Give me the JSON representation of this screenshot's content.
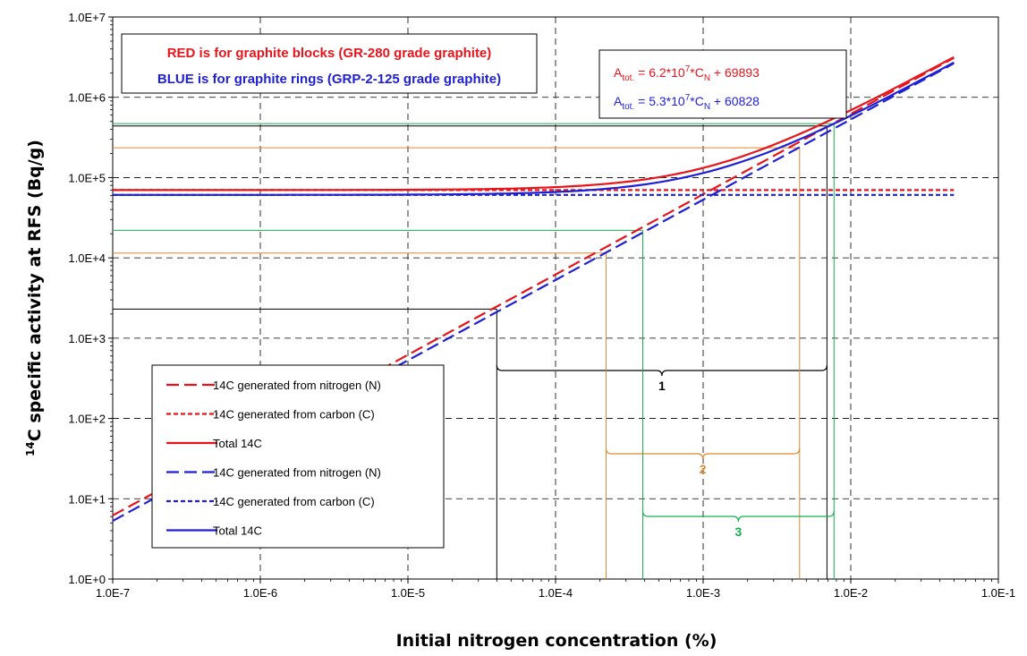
{
  "chart_data": {
    "type": "line",
    "xlabel": "Initial nitrogen concentration (%)",
    "ylabel_sup": "14",
    "ylabel_rest": "C specific activity at RFS (Bq/g)",
    "x_scale": "log",
    "y_scale": "log",
    "xlim": [
      1e-07,
      0.1
    ],
    "ylim": [
      1,
      10000000
    ],
    "grid": true,
    "x_ticks": [
      {
        "value": 1e-07,
        "label": "1.0E-7"
      },
      {
        "value": 1e-06,
        "label": "1.0E-6"
      },
      {
        "value": 1e-05,
        "label": "1.0E-5"
      },
      {
        "value": 0.0001,
        "label": "1.0E-4"
      },
      {
        "value": 0.001,
        "label": "1.0E-3"
      },
      {
        "value": 0.01,
        "label": "1.0E-2"
      },
      {
        "value": 0.1,
        "label": "1.0E-1"
      }
    ],
    "y_ticks": [
      {
        "value": 1,
        "label": "1.0E+0"
      },
      {
        "value": 10,
        "label": "1.0E+1"
      },
      {
        "value": 100,
        "label": "1.0E+2"
      },
      {
        "value": 1000,
        "label": "1.0E+3"
      },
      {
        "value": 10000,
        "label": "1.0E+4"
      },
      {
        "value": 100000,
        "label": "1.0E+5"
      },
      {
        "value": 1000000,
        "label": "1.0E+6"
      },
      {
        "value": 10000000,
        "label": "1.0E+7"
      }
    ],
    "series": [
      {
        "name": "14C generated from nitrogen (N)",
        "color": "#e8141c",
        "style": "long-dash",
        "slope": 62000000,
        "intercept": 0
      },
      {
        "name": "14C generated from carbon (C)",
        "color": "#e8141c",
        "style": "short-dash",
        "slope": 0,
        "intercept": 69893
      },
      {
        "name": "Total 14C",
        "color": "#e8141c",
        "style": "solid",
        "slope": 62000000,
        "intercept": 69893
      },
      {
        "name": "14C generated from nitrogen (N)",
        "color": "#1f1fd6",
        "style": "long-dash",
        "slope": 53000000,
        "intercept": 0
      },
      {
        "name": "14C generated from carbon (C)",
        "color": "#1f1fd6",
        "style": "short-dash",
        "slope": 0,
        "intercept": 60828
      },
      {
        "name": "Total 14C",
        "color": "#1f1fd6",
        "style": "solid",
        "slope": 53000000,
        "intercept": 60828
      }
    ],
    "series_x_range": [
      1e-07,
      0.05
    ],
    "legend_placement": "bottom-left",
    "notes": {
      "red": "RED is for graphite blocks (GR-280 grade graphite)",
      "blue": "BLUE is for graphite rings (GRP-2-125 grade graphite)"
    },
    "equations": {
      "red": {
        "base": "A",
        "sub": "tot.",
        "mid": " = 6.2*10",
        "sup": "7",
        "mid2": "*C",
        "sub2": "N",
        "tail": " + 69893"
      },
      "blue": {
        "base": "A",
        "sub": "tot.",
        "mid": " = 5.3*10",
        "sup": "7",
        "mid2": "*C",
        "sub2": "N",
        "tail": " + 60828"
      }
    },
    "ranges": [
      {
        "label": "1",
        "color": "#000000",
        "x_start": 4e-05,
        "x_end": 0.0069,
        "y_low": 2300,
        "y_high": 440000
      },
      {
        "label": "2",
        "color": "#e08a2c",
        "x_start": 0.00022,
        "x_end": 0.0045,
        "y_low": 11500,
        "y_high": 235000
      },
      {
        "label": "3",
        "color": "#16b050",
        "x_start": 0.00039,
        "x_end": 0.0077,
        "y_low": 22000,
        "y_high": 470000
      }
    ]
  }
}
